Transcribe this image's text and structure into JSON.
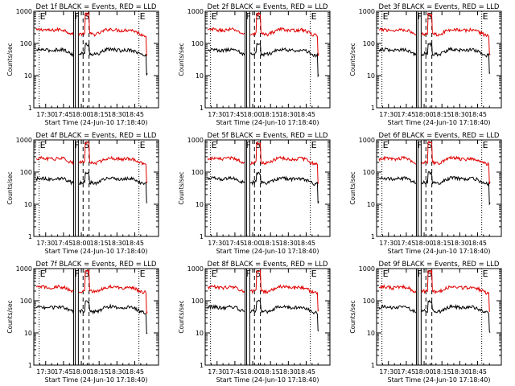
{
  "chart_data": [
    {
      "type": "line",
      "title": "Det 1f BLACK = Events, RED = LLD"
    },
    {
      "type": "line",
      "title": "Det 2f BLACK = Events, RED = LLD"
    },
    {
      "type": "line",
      "title": "Det 3f BLACK = Events, RED = LLD"
    },
    {
      "type": "line",
      "title": "Det 4f BLACK = Events, RED = LLD"
    },
    {
      "type": "line",
      "title": "Det 5f BLACK = Events, RED = LLD"
    },
    {
      "type": "line",
      "title": "Det 6f BLACK = Events, RED = LLD"
    },
    {
      "type": "line",
      "title": "Det 7f BLACK = Events, RED = LLD"
    },
    {
      "type": "line",
      "title": "Det 8f BLACK = Events, RED = LLD"
    },
    {
      "type": "line",
      "title": "Det 9f BLACK = Events, RED = LLD"
    }
  ],
  "shared": {
    "xlabel": "Start Time (24-Jun-10 17:18:40)",
    "ylabel": "Counts/sec",
    "xticks": [
      "17:30",
      "17:45",
      "18:00",
      "18:15",
      "18:30",
      "18:45"
    ],
    "xtick_values_min": [
      30,
      45,
      60,
      75,
      90,
      105
    ],
    "xlim_min": [
      20,
      125
    ],
    "yticks": [
      "1",
      "10",
      "100",
      "1000"
    ],
    "ylim": [
      1,
      1000
    ],
    "yscale": "log",
    "regions": [
      {
        "label": "E",
        "start_min": 24.5,
        "end_min": 24.5,
        "style": "dotted"
      },
      {
        "label": "F",
        "start_min": 53.5,
        "end_min": 57.5,
        "style": "solid"
      },
      {
        "label": "S",
        "start_min": 61.5,
        "end_min": 66.5,
        "style": "dashed"
      },
      {
        "label": "E",
        "start_min": 108.5,
        "end_min": 108.5,
        "style": "dotted"
      }
    ],
    "series": [
      {
        "name": "LLD",
        "color": "#e00000",
        "level": 230
      },
      {
        "name": "Events",
        "color": "#000000",
        "level": 55
      }
    ]
  }
}
